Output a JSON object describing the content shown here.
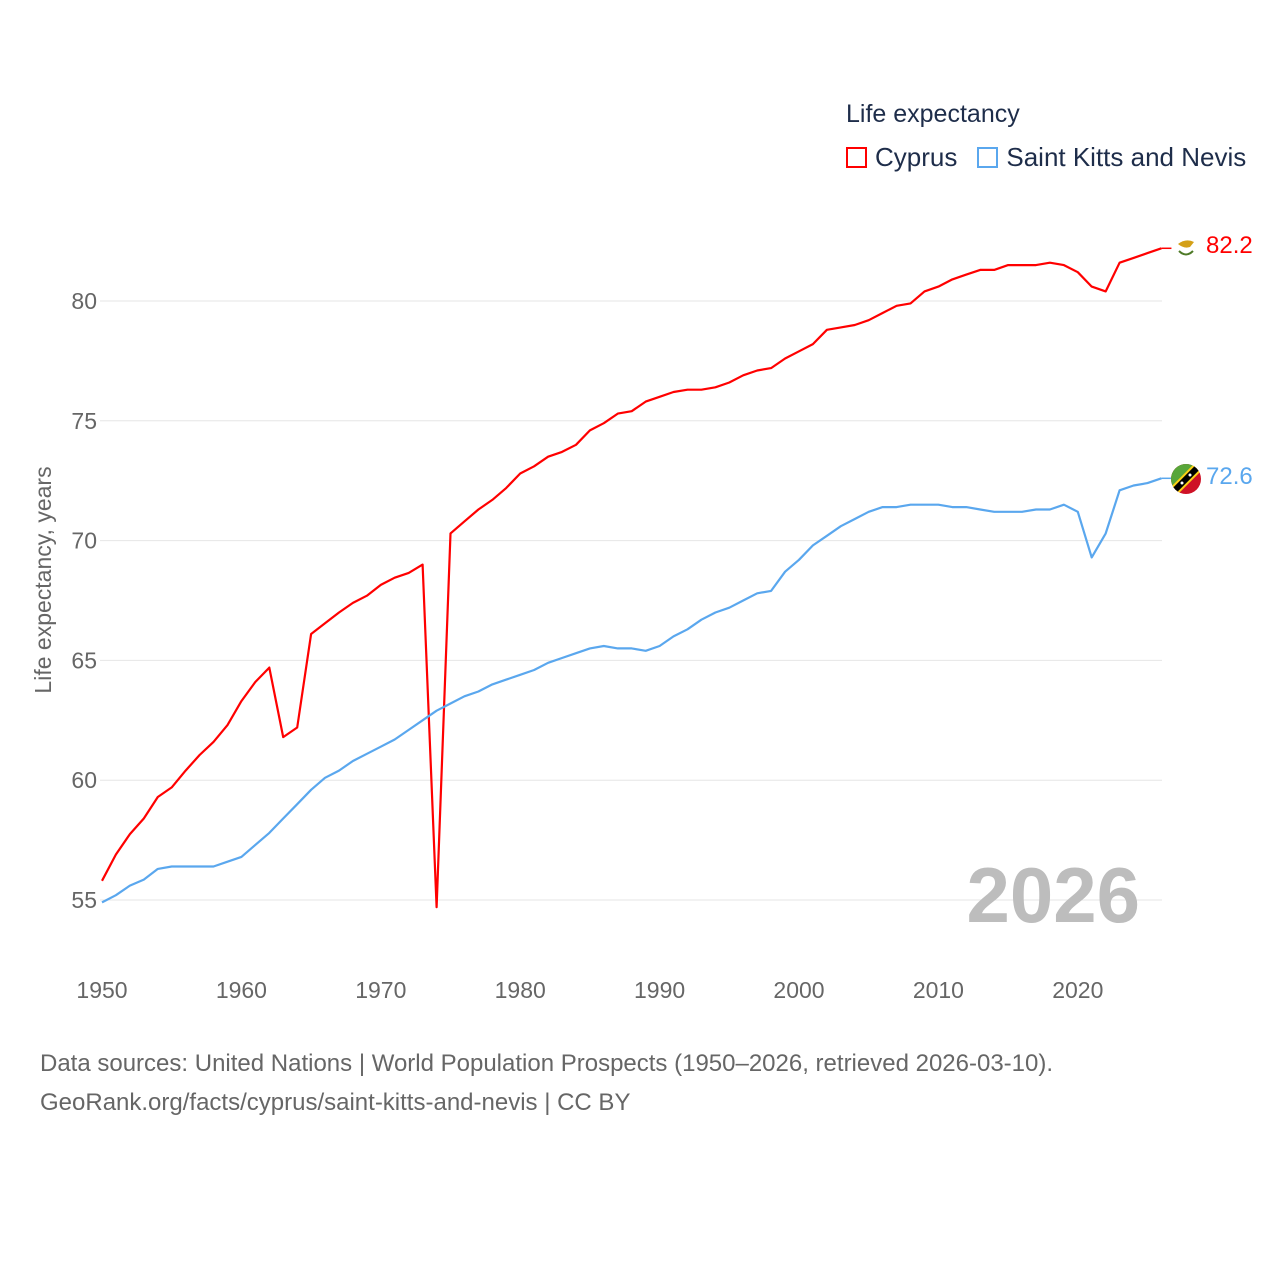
{
  "chart_data": {
    "type": "line",
    "title": "Life expectancy",
    "ylabel": "Life expectancy, years",
    "xlabel": "",
    "xlim": [
      1950,
      2026
    ],
    "ylim": [
      53,
      84
    ],
    "yticks": [
      55,
      60,
      65,
      70,
      75,
      80
    ],
    "xticks": [
      1950,
      1960,
      1970,
      1980,
      1990,
      2000,
      2010,
      2020
    ],
    "grid": true,
    "legend_position": "top-right",
    "x_start": 1950,
    "series": [
      {
        "name": "Cyprus",
        "color": "#ff0000",
        "end_label": "82.2",
        "values": [
          55.8,
          56.9,
          57.75,
          58.4,
          59.3,
          59.7,
          60.4,
          61.05,
          61.6,
          62.3,
          63.3,
          64.1,
          64.7,
          61.8,
          62.2,
          66.1,
          66.55,
          67.0,
          67.4,
          67.7,
          68.15,
          68.45,
          68.65,
          69.0,
          54.7,
          70.3,
          70.8,
          71.3,
          71.7,
          72.2,
          72.8,
          73.1,
          73.5,
          73.7,
          74.0,
          74.6,
          74.9,
          75.3,
          75.4,
          75.8,
          76.0,
          76.2,
          76.3,
          76.3,
          76.4,
          76.6,
          76.9,
          77.1,
          77.2,
          77.6,
          77.9,
          78.2,
          78.8,
          78.9,
          79.0,
          79.2,
          79.5,
          79.8,
          79.9,
          80.4,
          80.6,
          80.9,
          81.1,
          81.3,
          81.3,
          81.5,
          81.5,
          81.5,
          81.6,
          81.5,
          81.2,
          80.6,
          80.4,
          81.6,
          81.8,
          82.0,
          82.2
        ]
      },
      {
        "name": "Saint Kitts and Nevis",
        "color": "#5aa7ee",
        "end_label": "72.6",
        "values": [
          54.9,
          55.2,
          55.6,
          55.85,
          56.3,
          56.4,
          56.4,
          56.4,
          56.4,
          56.6,
          56.8,
          57.3,
          57.8,
          58.4,
          59.0,
          59.6,
          60.1,
          60.4,
          60.8,
          61.1,
          61.4,
          61.7,
          62.1,
          62.5,
          62.9,
          63.2,
          63.5,
          63.7,
          64.0,
          64.2,
          64.4,
          64.6,
          64.9,
          65.1,
          65.3,
          65.5,
          65.6,
          65.5,
          65.5,
          65.4,
          65.6,
          66.0,
          66.3,
          66.7,
          67.0,
          67.2,
          67.5,
          67.8,
          67.9,
          68.7,
          69.2,
          69.8,
          70.2,
          70.6,
          70.9,
          71.2,
          71.4,
          71.4,
          71.5,
          71.5,
          71.5,
          71.4,
          71.4,
          71.3,
          71.2,
          71.2,
          71.2,
          71.3,
          71.3,
          71.5,
          71.2,
          69.3,
          70.3,
          72.1,
          72.3,
          72.4,
          72.6
        ]
      }
    ],
    "annotation_year": "2026"
  },
  "source": {
    "line1": "Data sources: United Nations | World Population Prospects (1950–2026, retrieved 2026-03-10).",
    "line2": "GeoRank.org/facts/cyprus/saint-kitts-and-nevis | CC BY"
  }
}
